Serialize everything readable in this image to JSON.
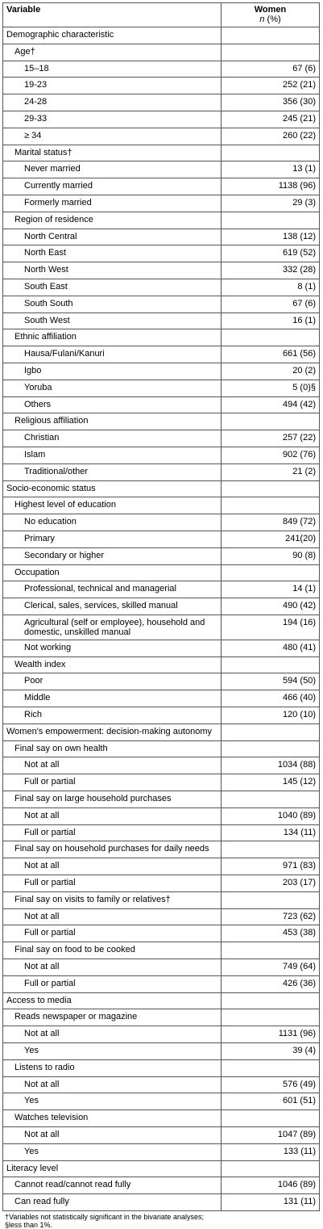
{
  "header": {
    "col1": "Variable",
    "col2": "Women",
    "col2_sub": [
      "n",
      "(%)"
    ]
  },
  "sections": [
    {
      "label": "Demographic characteristic",
      "groups": [
        {
          "label": "Age†",
          "rows": [
            [
              "15–18",
              "67 (6)"
            ],
            [
              "19-23",
              "252 (21)"
            ],
            [
              "24-28",
              "356 (30)"
            ],
            [
              "29-33",
              "245 (21)"
            ],
            [
              "≥ 34",
              "260 (22)"
            ]
          ]
        },
        {
          "label": "Marital status†",
          "rows": [
            [
              "Never married",
              "13 (1)"
            ],
            [
              "Currently married",
              "1138 (96)"
            ],
            [
              "Formerly married",
              "29 (3)"
            ]
          ]
        },
        {
          "label": "Region of residence",
          "rows": [
            [
              "North Central",
              "138 (12)"
            ],
            [
              "North East",
              "619 (52)"
            ],
            [
              "North West",
              "332 (28)"
            ],
            [
              "South East",
              "8 (1)"
            ],
            [
              "South South",
              "67 (6)"
            ],
            [
              "South West",
              "16 (1)"
            ]
          ]
        },
        {
          "label": "Ethnic affiliation",
          "rows": [
            [
              "Hausa/Fulani/Kanuri",
              "661 (56)"
            ],
            [
              "Igbo",
              "20 (2)"
            ],
            [
              "Yoruba",
              "5 (0)§"
            ],
            [
              "Others",
              "494 (42)"
            ]
          ]
        },
        {
          "label": "Religious affiliation",
          "rows": [
            [
              "Christian",
              "257 (22)"
            ],
            [
              "Islam",
              "902 (76)"
            ],
            [
              "Traditional/other",
              "21 (2)"
            ]
          ]
        }
      ]
    },
    {
      "label": "Socio-economic status",
      "groups": [
        {
          "label": "Highest level of education",
          "rows": [
            [
              "No education",
              "849 (72)"
            ],
            [
              "Primary",
              "241(20)"
            ],
            [
              "Secondary or higher",
              "90 (8)"
            ]
          ]
        },
        {
          "label": "Occupation",
          "rows": [
            [
              "Professional, technical and managerial",
              "14 (1)"
            ],
            [
              "Clerical, sales, services, skilled manual",
              "490 (42)"
            ],
            [
              "Agricultural (self or  employee), household and domestic, unskilled manual",
              "194 (16)"
            ],
            [
              "Not working",
              "480 (41)"
            ]
          ]
        },
        {
          "label": "Wealth index",
          "rows": [
            [
              "Poor",
              "594 (50)"
            ],
            [
              "Middle",
              "466 (40)"
            ],
            [
              "Rich",
              "120 (10)"
            ]
          ]
        }
      ]
    },
    {
      "label": "Women's empowerment: decision-making autonomy",
      "groups": [
        {
          "label": "Final say on own health",
          "rows": [
            [
              "Not at all",
              "1034 (88)"
            ],
            [
              "Full or partial",
              "145 (12)"
            ]
          ]
        },
        {
          "label": "Final say on large household purchases",
          "rows": [
            [
              "Not at all",
              "1040 (89)"
            ],
            [
              "Full or partial",
              "134 (11)"
            ]
          ]
        },
        {
          "label": "Final say on household purchases for daily needs",
          "rows": [
            [
              "Not at all",
              "971 (83)"
            ],
            [
              "Full or partial",
              "203 (17)"
            ]
          ]
        },
        {
          "label": "Final say on visits to family or relatives†",
          "rows": [
            [
              "Not at all",
              "723 (62)"
            ],
            [
              "Full or partial",
              "453 (38)"
            ]
          ]
        },
        {
          "label": "Final say on food to be cooked",
          "rows": [
            [
              "Not at all",
              "749 (64)"
            ],
            [
              "Full or partial",
              "426 (36)"
            ]
          ]
        }
      ]
    },
    {
      "label": "Access to media",
      "groups": [
        {
          "label": "Reads newspaper or magazine",
          "rows": [
            [
              "Not at all",
              "1131 (96)"
            ],
            [
              "Yes",
              "39 (4)"
            ]
          ]
        },
        {
          "label": "Listens to radio",
          "rows": [
            [
              "Not at all",
              "576 (49)"
            ],
            [
              "Yes",
              "601 (51)"
            ]
          ]
        },
        {
          "label": "Watches television",
          "rows": [
            [
              "Not at all",
              "1047 (89)"
            ],
            [
              "Yes",
              "133 (11)"
            ]
          ]
        }
      ]
    },
    {
      "label": "Literacy level",
      "rows": [
        [
          "Cannot read/cannot read fully",
          "1046 (89)"
        ],
        [
          "Can read fully",
          "131 (11)"
        ]
      ]
    }
  ],
  "footnotes": [
    "†Variables not statistically significant in the bivariate analyses;",
    "§less than 1%."
  ]
}
